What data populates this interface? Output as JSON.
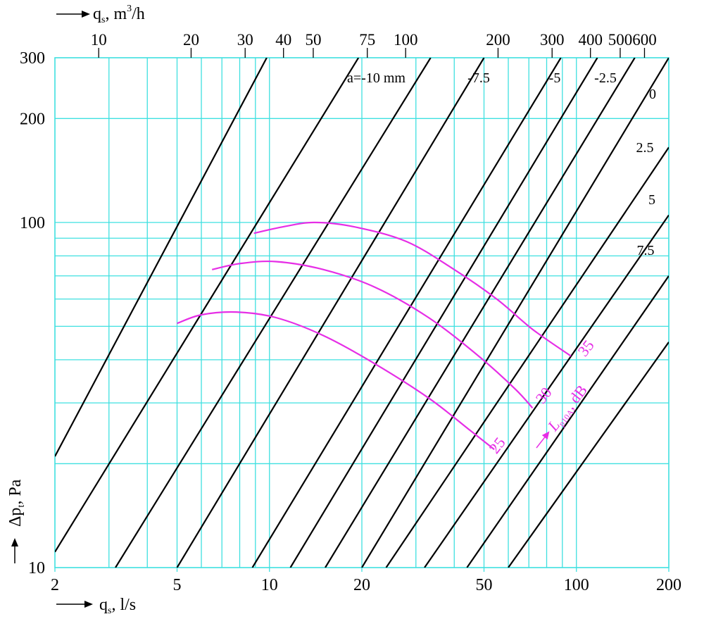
{
  "chart_data": {
    "type": "line",
    "x_scale": "log",
    "y_scale": "log",
    "xlim": [
      2,
      200
    ],
    "ylim": [
      10,
      300
    ],
    "xlabel": "q",
    "xlabel_sub": "s",
    "xlabel_tail": ", l/s",
    "x2label": "q",
    "x2label_sub": "s",
    "x2label_unit": ", m",
    "x2label_sup": "3",
    "x2label_tail": "/h",
    "ylabel": "Δp",
    "ylabel_sub": "t",
    "ylabel_tail": ", Pa",
    "x_ticks": [
      {
        "value": 2,
        "label": "2"
      },
      {
        "value": 5,
        "label": "5"
      },
      {
        "value": 10,
        "label": "10"
      },
      {
        "value": 20,
        "label": "20"
      },
      {
        "value": 50,
        "label": "50"
      },
      {
        "value": 100,
        "label": "100"
      },
      {
        "value": 200,
        "label": "200"
      }
    ],
    "x_grid": [
      3,
      4,
      5,
      6,
      7,
      8,
      9,
      10,
      20,
      30,
      40,
      50,
      60,
      70,
      80,
      90,
      100
    ],
    "x2_ticks": [
      {
        "value": 10,
        "label": "10"
      },
      {
        "value": 20,
        "label": "20"
      },
      {
        "value": 30,
        "label": "30"
      },
      {
        "value": 40,
        "label": "40"
      },
      {
        "value": 50,
        "label": "50"
      },
      {
        "value": 75,
        "label": "75"
      },
      {
        "value": 100,
        "label": "100"
      },
      {
        "value": 200,
        "label": "200"
      },
      {
        "value": 300,
        "label": "300"
      },
      {
        "value": 400,
        "label": "400"
      },
      {
        "value": 500,
        "label": "500"
      },
      {
        "value": 600,
        "label": "600"
      }
    ],
    "y_ticks": [
      {
        "value": 10,
        "label": "10"
      },
      {
        "value": 100,
        "label": "100"
      },
      {
        "value": 200,
        "label": "200"
      },
      {
        "value": 300,
        "label": "300"
      }
    ],
    "y_grid": [
      20,
      30,
      40,
      50,
      60,
      70,
      80,
      90,
      100,
      200
    ],
    "grid": true,
    "colors": {
      "grid": "#3fe0e0",
      "lines": "#000000",
      "spl": "#e62ee6"
    },
    "series": [
      {
        "name": "a=-10 mm",
        "points": [
          [
            2,
            21
          ],
          [
            9.8,
            300
          ]
        ]
      },
      {
        "name": "-7.5",
        "points": [
          [
            2,
            11.1
          ],
          [
            19.5,
            300
          ]
        ]
      },
      {
        "name": "-5",
        "points": [
          [
            3.15,
            10
          ],
          [
            33.5,
            300
          ]
        ]
      },
      {
        "name": "-2.5",
        "points": [
          [
            5,
            10
          ],
          [
            50,
            300
          ]
        ]
      },
      {
        "name": "0",
        "points": [
          [
            8.8,
            10
          ],
          [
            89,
            300
          ]
        ]
      },
      {
        "name": "2.5",
        "points": [
          [
            11.7,
            10
          ],
          [
            117,
            300
          ]
        ]
      },
      {
        "name": "5",
        "points": [
          [
            15.2,
            10
          ],
          [
            155,
            300
          ]
        ]
      },
      {
        "name": "7.5",
        "points": [
          [
            20,
            10
          ],
          [
            200,
            300
          ]
        ]
      },
      {
        "name": "",
        "points": [
          [
            24,
            10
          ],
          [
            200,
            165
          ]
        ]
      },
      {
        "name": "",
        "points": [
          [
            32,
            10
          ],
          [
            200,
            105
          ]
        ]
      },
      {
        "name": "",
        "points": [
          [
            44,
            10
          ],
          [
            200,
            70
          ]
        ]
      },
      {
        "name": "",
        "points": [
          [
            60,
            10
          ],
          [
            200,
            45
          ]
        ]
      }
    ],
    "spl_curves": [
      {
        "name": "35",
        "points": [
          [
            8.9,
            93
          ],
          [
            11,
            97
          ],
          [
            14,
            100
          ],
          [
            19,
            97
          ],
          [
            28,
            88
          ],
          [
            40,
            73
          ],
          [
            55,
            60
          ],
          [
            72,
            49
          ],
          [
            96,
            41
          ]
        ]
      },
      {
        "name": "30",
        "points": [
          [
            6.5,
            73
          ],
          [
            8,
            76
          ],
          [
            10.5,
            77
          ],
          [
            15,
            73
          ],
          [
            22,
            65
          ],
          [
            33,
            53
          ],
          [
            48,
            41
          ],
          [
            63,
            33
          ],
          [
            72,
            29
          ]
        ]
      },
      {
        "name": "25",
        "points": [
          [
            5,
            51
          ],
          [
            6,
            54
          ],
          [
            7.8,
            55
          ],
          [
            10.5,
            53
          ],
          [
            15,
            47
          ],
          [
            22,
            39
          ],
          [
            33,
            31
          ],
          [
            45,
            25
          ],
          [
            54,
            22
          ]
        ]
      }
    ],
    "spl_axis_label": "L",
    "spl_axis_label_sub": "p10A",
    "spl_axis_label_tail": ", dB"
  }
}
